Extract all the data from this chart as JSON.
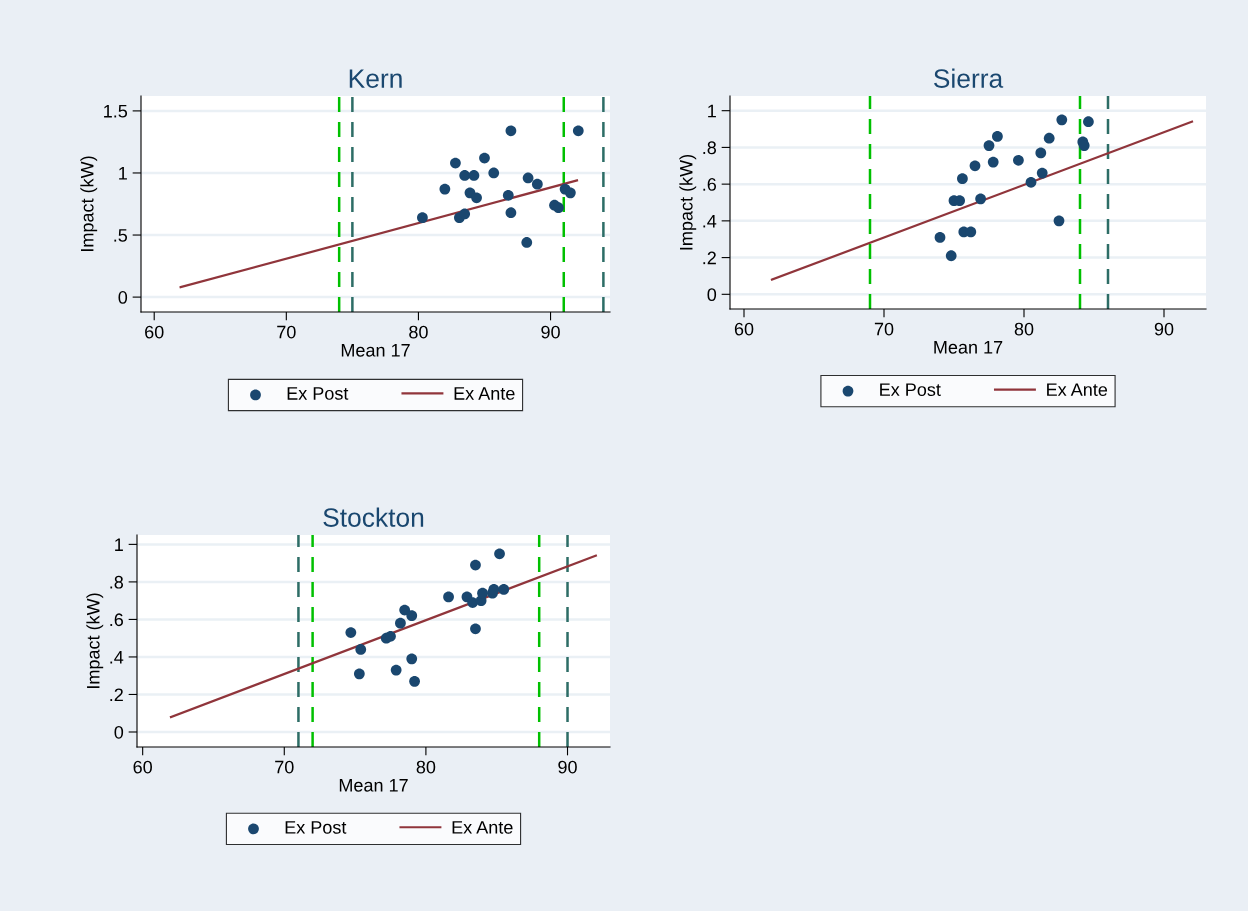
{
  "chart_data": [
    {
      "type": "scatter",
      "title": "Kern",
      "xlabel": "Mean 17",
      "ylabel": "Impact (kW)",
      "xlim": [
        59,
        94.5
      ],
      "ylim": [
        -0.12,
        1.62
      ],
      "xticks": [
        60,
        70,
        80,
        90
      ],
      "yticks": [
        0,
        {
          "value": 0.5,
          "label": ".5"
        },
        1,
        1.5
      ],
      "grid": "y",
      "legend": "bottom",
      "series": [
        {
          "name": "Ex Post",
          "marker": "circle",
          "color": "#1a476f",
          "x": [
            80.3,
            82.0,
            82.8,
            83.1,
            83.5,
            83.5,
            83.9,
            84.2,
            84.4,
            85.0,
            85.7,
            86.8,
            87.0,
            87.0,
            88.2,
            88.3,
            89.0,
            90.3,
            90.6,
            91.1,
            91.5,
            92.1
          ],
          "values": [
            0.64,
            0.87,
            1.08,
            0.64,
            0.67,
            0.98,
            0.84,
            0.98,
            0.8,
            1.12,
            1.0,
            0.82,
            1.34,
            0.68,
            0.44,
            0.96,
            0.91,
            0.74,
            0.72,
            0.87,
            0.84,
            1.34
          ]
        },
        {
          "name": "Ex Ante",
          "type": "line",
          "color": "#90353b",
          "x": [
            62,
            92
          ],
          "values": [
            0.08,
            0.94
          ]
        }
      ],
      "ref_lines": [
        {
          "axis": "x",
          "value": 74,
          "color": "#00c000",
          "line_style": "dashed"
        },
        {
          "axis": "x",
          "value": 75,
          "color": "#2d6d66",
          "line_style": "dashed"
        },
        {
          "axis": "x",
          "value": 91,
          "color": "#00c000",
          "line_style": "dashed"
        },
        {
          "axis": "x",
          "value": 94,
          "color": "#2d6d66",
          "line_style": "dashed"
        }
      ]
    },
    {
      "type": "scatter",
      "title": "Sierra",
      "xlabel": "Mean 17",
      "ylabel": "Impact (kW)",
      "xlim": [
        59,
        93
      ],
      "ylim": [
        -0.08,
        1.08
      ],
      "xticks": [
        60,
        70,
        80,
        90
      ],
      "yticks": [
        0,
        {
          "value": 0.2,
          "label": ".2"
        },
        {
          "value": 0.4,
          "label": ".4"
        },
        {
          "value": 0.6,
          "label": ".6"
        },
        {
          "value": 0.8,
          "label": ".8"
        },
        1
      ],
      "grid": "y",
      "legend": "bottom",
      "series": [
        {
          "name": "Ex Post",
          "marker": "circle",
          "color": "#1a476f",
          "x": [
            74.0,
            74.8,
            75.0,
            75.4,
            75.6,
            75.7,
            76.2,
            76.5,
            76.9,
            77.5,
            77.8,
            78.1,
            79.6,
            80.5,
            81.2,
            81.3,
            81.8,
            82.5,
            82.7,
            84.2,
            84.3,
            84.6
          ],
          "values": [
            0.31,
            0.21,
            0.51,
            0.51,
            0.63,
            0.34,
            0.34,
            0.7,
            0.52,
            0.81,
            0.72,
            0.86,
            0.73,
            0.61,
            0.77,
            0.66,
            0.85,
            0.4,
            0.95,
            0.83,
            0.81,
            0.94
          ]
        },
        {
          "name": "Ex Ante",
          "type": "line",
          "color": "#90353b",
          "x": [
            62,
            92
          ],
          "values": [
            0.08,
            0.94
          ]
        }
      ],
      "ref_lines": [
        {
          "axis": "x",
          "value": 69,
          "color": "#00c000",
          "line_style": "dashed"
        },
        {
          "axis": "x",
          "value": 84,
          "color": "#00c000",
          "line_style": "dashed"
        },
        {
          "axis": "x",
          "value": 86,
          "color": "#2d6d66",
          "line_style": "dashed"
        }
      ]
    },
    {
      "type": "scatter",
      "title": "Stockton",
      "xlabel": "Mean 17",
      "ylabel": "Impact (kW)",
      "xlim": [
        59.6,
        93
      ],
      "ylim": [
        -0.08,
        1.05
      ],
      "xticks": [
        60,
        70,
        80,
        90
      ],
      "yticks": [
        0,
        {
          "value": 0.2,
          "label": ".2"
        },
        {
          "value": 0.4,
          "label": ".4"
        },
        {
          "value": 0.6,
          "label": ".6"
        },
        {
          "value": 0.8,
          "label": ".8"
        },
        1
      ],
      "grid": "y",
      "legend": "bottom",
      "series": [
        {
          "name": "Ex Post",
          "marker": "circle",
          "color": "#1a476f",
          "x": [
            74.7,
            75.4,
            75.3,
            77.2,
            77.5,
            77.9,
            78.2,
            78.5,
            79.0,
            79.0,
            79.2,
            81.6,
            82.9,
            83.3,
            83.5,
            83.5,
            83.9,
            84.0,
            84.7,
            84.8,
            85.2,
            85.5
          ],
          "values": [
            0.53,
            0.44,
            0.31,
            0.5,
            0.51,
            0.33,
            0.58,
            0.65,
            0.62,
            0.39,
            0.27,
            0.72,
            0.72,
            0.69,
            0.89,
            0.55,
            0.7,
            0.74,
            0.74,
            0.76,
            0.95,
            0.76
          ]
        },
        {
          "name": "Ex Ante",
          "type": "line",
          "color": "#90353b",
          "x": [
            62,
            92
          ],
          "values": [
            0.08,
            0.94
          ]
        }
      ],
      "ref_lines": [
        {
          "axis": "x",
          "value": 71,
          "color": "#2d6d66",
          "line_style": "dashed"
        },
        {
          "axis": "x",
          "value": 72,
          "color": "#00c000",
          "line_style": "dashed"
        },
        {
          "axis": "x",
          "value": 88,
          "color": "#00c000",
          "line_style": "dashed"
        },
        {
          "axis": "x",
          "value": 90,
          "color": "#2d6d66",
          "line_style": "dashed"
        }
      ]
    }
  ]
}
